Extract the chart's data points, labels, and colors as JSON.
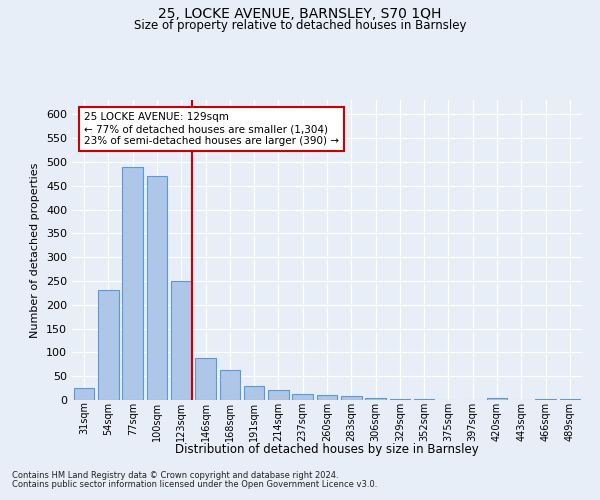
{
  "title1": "25, LOCKE AVENUE, BARNSLEY, S70 1QH",
  "title2": "Size of property relative to detached houses in Barnsley",
  "xlabel": "Distribution of detached houses by size in Barnsley",
  "ylabel": "Number of detached properties",
  "categories": [
    "31sqm",
    "54sqm",
    "77sqm",
    "100sqm",
    "123sqm",
    "146sqm",
    "168sqm",
    "191sqm",
    "214sqm",
    "237sqm",
    "260sqm",
    "283sqm",
    "306sqm",
    "329sqm",
    "352sqm",
    "375sqm",
    "397sqm",
    "420sqm",
    "443sqm",
    "466sqm",
    "489sqm"
  ],
  "values": [
    25,
    230,
    490,
    470,
    250,
    88,
    62,
    30,
    22,
    12,
    10,
    8,
    4,
    3,
    2,
    1,
    1,
    5,
    1,
    3,
    2
  ],
  "bar_color": "#aec6e8",
  "bar_edge_color": "#5b9bd5",
  "vline_index": 4,
  "vline_color": "#cc0000",
  "annotation_line1": "25 LOCKE AVENUE: 129sqm",
  "annotation_line2": "← 77% of detached houses are smaller (1,304)",
  "annotation_line3": "23% of semi-detached houses are larger (390) →",
  "annotation_box_color": "#ffffff",
  "annotation_box_edge": "#cc0000",
  "footer1": "Contains HM Land Registry data © Crown copyright and database right 2024.",
  "footer2": "Contains public sector information licensed under the Open Government Licence v3.0.",
  "background_color": "#e8eef7",
  "plot_bg_color": "#e8eef7",
  "ylim": [
    0,
    630
  ],
  "yticks": [
    0,
    50,
    100,
    150,
    200,
    250,
    300,
    350,
    400,
    450,
    500,
    550,
    600
  ]
}
